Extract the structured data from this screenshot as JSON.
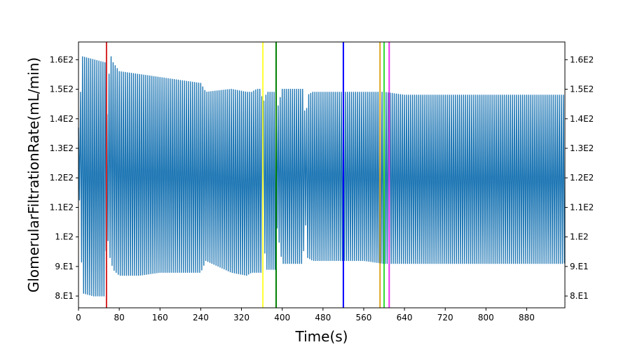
{
  "chart_data": {
    "type": "line",
    "title": "",
    "xlabel": "Time(s)",
    "ylabel": "GlomerularFiltrationRate(mL/min)",
    "xlim": [
      0,
      955
    ],
    "ylim": [
      76,
      166
    ],
    "x_ticks": [
      0,
      80,
      160,
      240,
      320,
      400,
      480,
      560,
      640,
      720,
      800,
      880
    ],
    "x_tick_labels": [
      "0",
      "80",
      "160",
      "240",
      "320",
      "400",
      "480",
      "560",
      "640",
      "720",
      "800",
      "880"
    ],
    "y_ticks": [
      80,
      90,
      100,
      110,
      120,
      130,
      140,
      150,
      160
    ],
    "y_tick_labels": [
      "8.E1",
      "9.E1",
      "1.E2",
      "1.1E2",
      "1.2E2",
      "1.3E2",
      "1.4E2",
      "1.5E2",
      "1.6E2"
    ],
    "y_ticks_right": true,
    "grid": false,
    "series": [
      {
        "color": "#1f77b4",
        "oscillating": true,
        "envelope_x": [
          0,
          8,
          30,
          52,
          55,
          62,
          68,
          80,
          120,
          160,
          200,
          240,
          250,
          300,
          330,
          340,
          350,
          358,
          362,
          370,
          388,
          390,
          400,
          420,
          440,
          446,
          450,
          460,
          480,
          520,
          560,
          600,
          640,
          700,
          760,
          820,
          880,
          955
        ],
        "envelope_max": [
          137,
          161,
          160,
          159,
          138,
          162,
          159,
          156,
          155,
          154,
          153,
          152,
          149,
          150,
          149,
          149,
          150,
          150,
          145,
          149,
          149,
          143,
          150,
          150,
          150,
          139,
          148,
          149,
          149,
          149,
          149,
          149,
          148,
          148,
          148,
          148,
          148,
          148
        ],
        "envelope_min": [
          123,
          81,
          80,
          80,
          103,
          93,
          89,
          87,
          87,
          88,
          88,
          88,
          92,
          88,
          87,
          88,
          88,
          88,
          100,
          89,
          89,
          103,
          91,
          91,
          91,
          104,
          93,
          92,
          92,
          92,
          92,
          91,
          91,
          91,
          91,
          91,
          91,
          91
        ],
        "cycle_period_s": 4
      }
    ],
    "vertical_lines": [
      {
        "x": 55,
        "color": "#d62728"
      },
      {
        "x": 362,
        "color": "#ffff33"
      },
      {
        "x": 388,
        "color": "#008000"
      },
      {
        "x": 520,
        "color": "#0000ff"
      },
      {
        "x": 592,
        "color": "#daa520"
      },
      {
        "x": 600,
        "color": "#33dd33"
      },
      {
        "x": 610,
        "color": "#ee33ee"
      }
    ]
  }
}
